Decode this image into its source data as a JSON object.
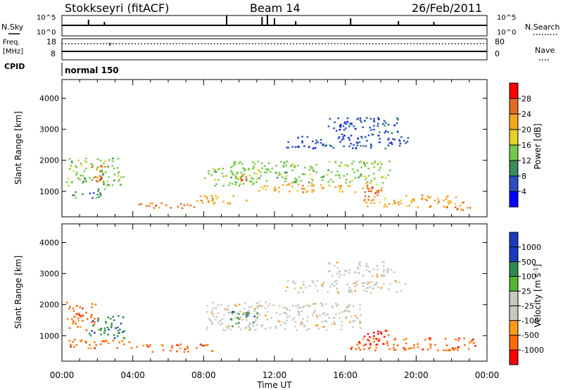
{
  "header": {
    "station": "Stokkseyri (fitACF)",
    "beam": "Beam 14",
    "date": "26/Feb/2011"
  },
  "left_labels": {
    "nsky": "N.Sky",
    "freq": "Freq.",
    "freq_unit": "[MHz]",
    "cpid": "CPID"
  },
  "right_labels": {
    "nsearch": "N.Search",
    "nave": "Nave"
  },
  "noise_ticks": {
    "top_left": "10^5",
    "bottom_left": "10^0",
    "top_right": "10^5",
    "bottom_right": "10^0"
  },
  "freq_ticks": {
    "top": "18",
    "bottom": "8"
  },
  "nave_ticks": {
    "top": "80",
    "bottom": "0"
  },
  "cpid_value": "normal 150",
  "colors": {
    "power": [
      "#0000ff",
      "#2a4fbf",
      "#3a8a5a",
      "#74c94a",
      "#e5d22a",
      "#f5a623",
      "#e46b1f",
      "#ff0000"
    ],
    "velocity": [
      "#ff0000",
      "#ff6a00",
      "#ff9a1a",
      "#c8c8c0",
      "#c8c8c0",
      "#56b530",
      "#2d8a55",
      "#1a3ac0"
    ]
  },
  "chart_data": [
    {
      "type": "heatmap",
      "panel": "power",
      "ylabel": "Slant Range [km]",
      "ylim": [
        180,
        4600
      ],
      "y_ticks": [
        "1000",
        "2000",
        "3000",
        "4000"
      ],
      "x_ticks": [
        "00:00",
        "04:00",
        "08:00",
        "12:00",
        "16:00",
        "20:00",
        "00:00"
      ],
      "colorbar_label": "Power [dB]",
      "colorbar_ticks": [
        "4",
        "8",
        "12",
        "16",
        "20",
        "24",
        "28"
      ],
      "regions": [
        {
          "t0": 0.2,
          "t1": 3.5,
          "r0": 1200,
          "r1": 2100,
          "value": 14
        },
        {
          "t0": 0.5,
          "t1": 2.5,
          "r0": 800,
          "r1": 1100,
          "value": 10
        },
        {
          "t0": 1.6,
          "t1": 2.4,
          "r0": 1300,
          "r1": 1900,
          "value": 26
        },
        {
          "t0": 4.2,
          "t1": 7.5,
          "r0": 450,
          "r1": 650,
          "value": 27
        },
        {
          "t0": 7.5,
          "t1": 10.5,
          "r0": 600,
          "r1": 900,
          "value": 22
        },
        {
          "t0": 8.0,
          "t1": 11.0,
          "r0": 1200,
          "r1": 1800,
          "value": 12
        },
        {
          "t0": 9.5,
          "t1": 18.5,
          "r0": 1300,
          "r1": 2000,
          "value": 15
        },
        {
          "t0": 9.8,
          "t1": 10.5,
          "r0": 1300,
          "r1": 1600,
          "value": 25
        },
        {
          "t0": 11.0,
          "t1": 18.0,
          "r0": 1000,
          "r1": 1300,
          "value": 22
        },
        {
          "t0": 12.5,
          "t1": 19.5,
          "r0": 2400,
          "r1": 2800,
          "value": 6
        },
        {
          "t0": 15.0,
          "t1": 19.0,
          "r0": 2800,
          "r1": 3400,
          "value": 5
        },
        {
          "t0": 17.0,
          "t1": 18.0,
          "r0": 700,
          "r1": 1300,
          "value": 26
        },
        {
          "t0": 17.0,
          "t1": 22.5,
          "r0": 500,
          "r1": 900,
          "value": 21
        },
        {
          "t0": 22.0,
          "t1": 23.0,
          "r0": 400,
          "r1": 700,
          "value": 27
        }
      ]
    },
    {
      "type": "heatmap",
      "panel": "velocity",
      "ylabel": "Slant Range [km]",
      "xlabel": "Time UT",
      "ylim": [
        180,
        4600
      ],
      "y_ticks": [
        "1000",
        "2000",
        "3000",
        "4000"
      ],
      "x_ticks": [
        "00:00",
        "04:00",
        "08:00",
        "12:00",
        "16:00",
        "20:00",
        "00:00"
      ],
      "colorbar_label": "Velocity [m s-1]",
      "colorbar_ticks": [
        "1000",
        "500",
        "100",
        "25",
        "-25",
        "-100",
        "-500",
        "-1000"
      ],
      "regions": [
        {
          "t0": 0.2,
          "t1": 2.0,
          "r0": 1200,
          "r1": 2100,
          "value": -150
        },
        {
          "t0": 1.5,
          "t1": 3.5,
          "r0": 900,
          "r1": 1700,
          "value": 150
        },
        {
          "t0": 0.2,
          "t1": 4.0,
          "r0": 600,
          "r1": 900,
          "value": -120
        },
        {
          "t0": 4.0,
          "t1": 8.5,
          "r0": 500,
          "r1": 750,
          "value": -150
        },
        {
          "t0": 8.0,
          "t1": 17.0,
          "r0": 1200,
          "r1": 2100,
          "value": 0
        },
        {
          "t0": 9.5,
          "t1": 11.0,
          "r0": 1300,
          "r1": 1800,
          "value": 200
        },
        {
          "t0": 12.5,
          "t1": 19.5,
          "r0": 2400,
          "r1": 2800,
          "value": 0
        },
        {
          "t0": 15.0,
          "t1": 19.0,
          "r0": 2900,
          "r1": 3400,
          "value": 0
        },
        {
          "t0": 16.0,
          "t1": 23.5,
          "r0": 550,
          "r1": 950,
          "value": -150
        },
        {
          "t0": 17.0,
          "t1": 18.5,
          "r0": 700,
          "r1": 1200,
          "value": -600
        }
      ]
    }
  ]
}
